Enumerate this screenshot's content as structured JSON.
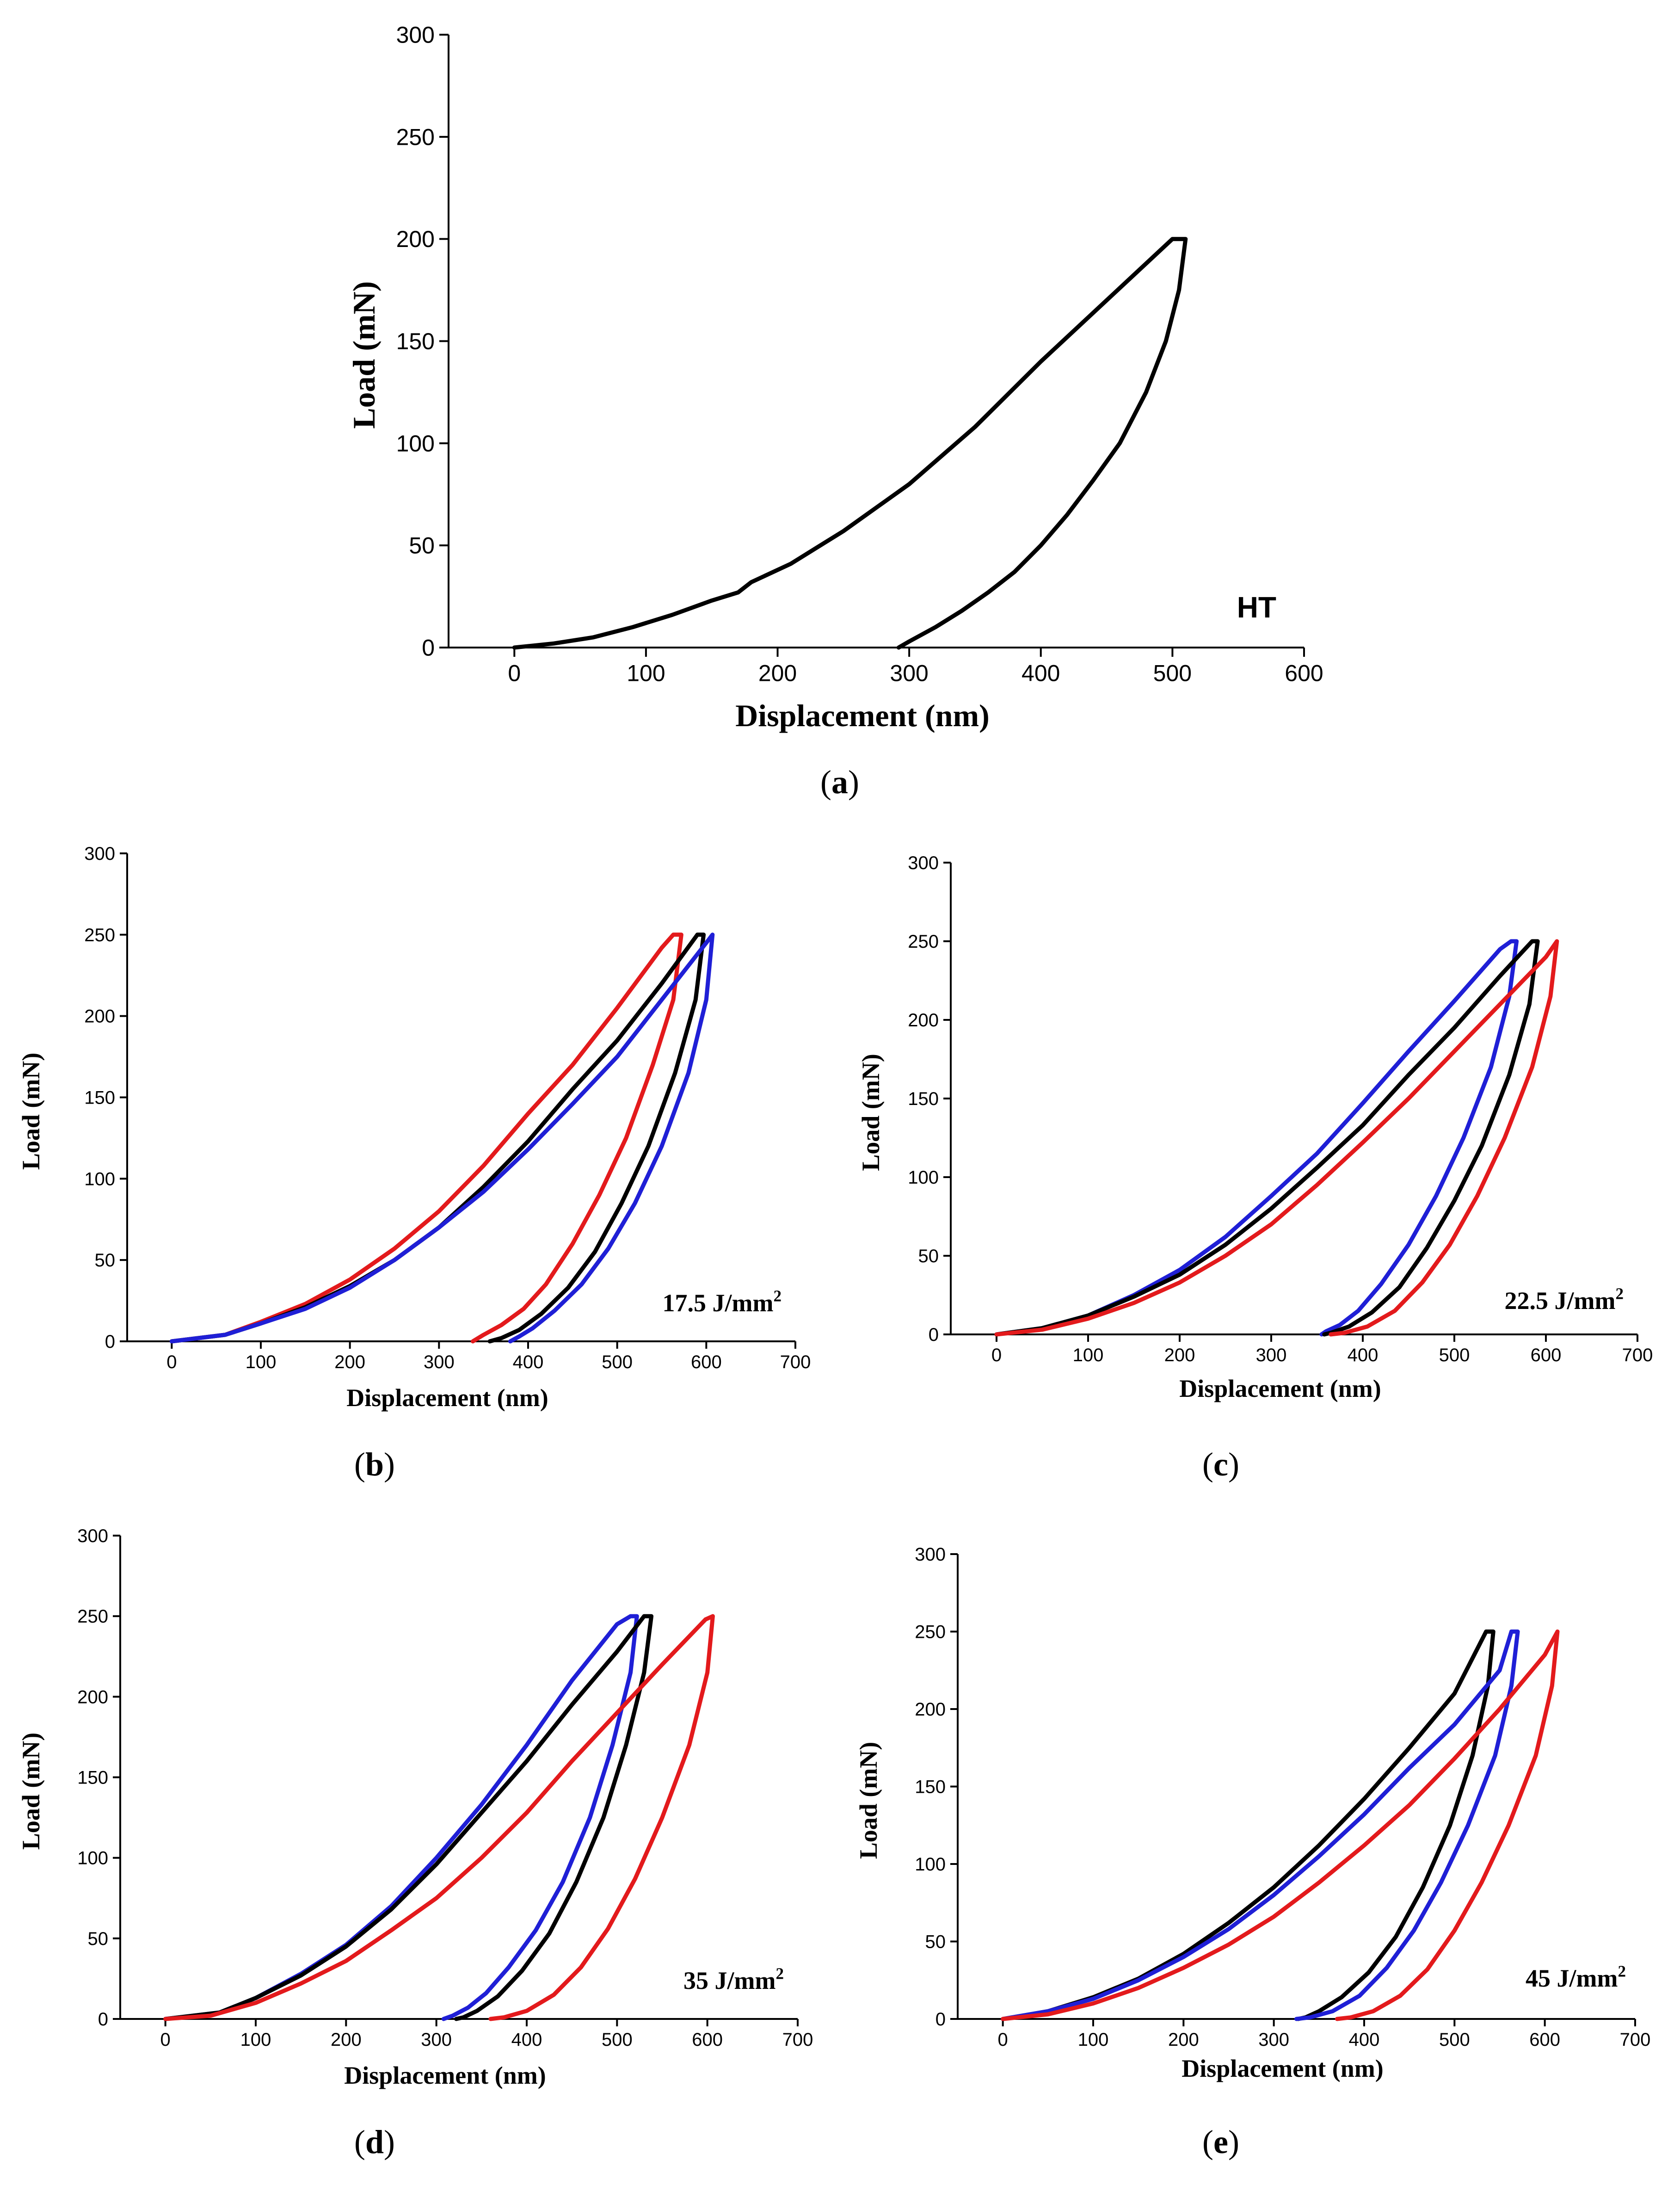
{
  "colors": {
    "black": "#000000",
    "red": "#e31a1c",
    "blue": "#1f1fd6"
  },
  "chart_data": [
    {
      "id": "a",
      "type": "line",
      "caption": "a",
      "xlabel": "Displacement (nm)",
      "ylabel": "Load (mN)",
      "xlim": [
        -50,
        600
      ],
      "ylim": [
        0,
        300
      ],
      "xticks": [
        0,
        100,
        200,
        300,
        400,
        500,
        600
      ],
      "yticks": [
        0,
        50,
        100,
        150,
        200,
        250,
        300
      ],
      "annotation": "HT",
      "series": [
        {
          "name": "HT",
          "color": "#000000",
          "x": [
            0,
            30,
            60,
            90,
            120,
            150,
            170,
            180,
            210,
            250,
            300,
            350,
            400,
            450,
            500,
            510,
            505,
            495,
            480,
            460,
            440,
            420,
            400,
            380,
            360,
            340,
            320,
            300,
            292
          ],
          "y": [
            0,
            2,
            5,
            10,
            16,
            23,
            27,
            32,
            41,
            57,
            80,
            108,
            140,
            170,
            200,
            200,
            175,
            150,
            125,
            100,
            82,
            65,
            50,
            37,
            27,
            18,
            10,
            3,
            0
          ]
        }
      ]
    },
    {
      "id": "b",
      "type": "line",
      "caption": "b",
      "xlabel": "Displacement (nm)",
      "ylabel": "Load (mN)",
      "xlim": [
        -50,
        700
      ],
      "ylim": [
        0,
        300
      ],
      "xticks": [
        0,
        100,
        200,
        300,
        400,
        500,
        600,
        700
      ],
      "yticks": [
        0,
        50,
        100,
        150,
        200,
        250,
        300
      ],
      "annotation": "17.5 J/mm",
      "annotation_sup": "2",
      "series": [
        {
          "name": "red",
          "color": "#e31a1c",
          "x": [
            0,
            60,
            100,
            150,
            200,
            250,
            300,
            350,
            400,
            450,
            500,
            550,
            563,
            572,
            563,
            540,
            510,
            480,
            450,
            420,
            395,
            370,
            350,
            338
          ],
          "y": [
            0,
            4,
            12,
            23,
            38,
            57,
            80,
            108,
            140,
            170,
            205,
            242,
            250,
            250,
            210,
            170,
            125,
            90,
            60,
            35,
            20,
            10,
            4,
            0
          ]
        },
        {
          "name": "black",
          "color": "#000000",
          "x": [
            0,
            60,
            100,
            150,
            200,
            250,
            300,
            350,
            400,
            450,
            500,
            550,
            590,
            597,
            588,
            565,
            535,
            505,
            475,
            445,
            415,
            390,
            370,
            357
          ],
          "y": [
            0,
            4,
            11,
            21,
            34,
            50,
            70,
            95,
            123,
            155,
            185,
            220,
            250,
            250,
            210,
            165,
            120,
            85,
            55,
            33,
            17,
            7,
            2,
            0
          ]
        },
        {
          "name": "blue",
          "color": "#1f1fd6",
          "x": [
            0,
            60,
            100,
            150,
            200,
            250,
            300,
            350,
            400,
            450,
            500,
            550,
            600,
            607,
            600,
            580,
            550,
            520,
            490,
            460,
            430,
            405,
            390,
            380
          ],
          "y": [
            0,
            4,
            11,
            20,
            33,
            50,
            70,
            92,
            118,
            146,
            175,
            210,
            245,
            250,
            210,
            165,
            120,
            85,
            57,
            35,
            19,
            8,
            3,
            0
          ]
        }
      ]
    },
    {
      "id": "c",
      "type": "line",
      "caption": "c",
      "xlabel": "Displacement (nm)",
      "ylabel": "Load (mN)",
      "xlim": [
        -50,
        700
      ],
      "ylim": [
        0,
        300
      ],
      "xticks": [
        0,
        100,
        200,
        300,
        400,
        500,
        600,
        700
      ],
      "yticks": [
        0,
        50,
        100,
        150,
        200,
        250,
        300
      ],
      "annotation": "22.5 J/mm",
      "annotation_sup": "2",
      "series": [
        {
          "name": "blue",
          "color": "#1f1fd6",
          "x": [
            0,
            50,
            100,
            150,
            200,
            250,
            300,
            350,
            400,
            450,
            500,
            550,
            562,
            568,
            560,
            540,
            510,
            480,
            450,
            420,
            395,
            375,
            360,
            355
          ],
          "y": [
            0,
            4,
            12,
            25,
            41,
            62,
            88,
            115,
            147,
            180,
            212,
            245,
            250,
            250,
            215,
            170,
            125,
            88,
            57,
            32,
            15,
            6,
            2,
            0
          ]
        },
        {
          "name": "black",
          "color": "#000000",
          "x": [
            0,
            50,
            100,
            150,
            200,
            250,
            300,
            350,
            400,
            450,
            500,
            550,
            585,
            591,
            582,
            560,
            530,
            500,
            470,
            440,
            410,
            385,
            365,
            358
          ],
          "y": [
            0,
            4,
            12,
            24,
            38,
            57,
            80,
            106,
            133,
            165,
            195,
            228,
            250,
            250,
            210,
            165,
            120,
            85,
            55,
            30,
            14,
            5,
            1,
            0
          ]
        },
        {
          "name": "red",
          "color": "#e31a1c",
          "x": [
            0,
            50,
            100,
            150,
            200,
            250,
            300,
            350,
            400,
            450,
            500,
            550,
            600,
            612,
            605,
            585,
            555,
            525,
            495,
            465,
            435,
            405,
            380,
            365
          ],
          "y": [
            0,
            3,
            10,
            20,
            33,
            50,
            70,
            95,
            122,
            150,
            180,
            210,
            240,
            250,
            215,
            170,
            125,
            88,
            57,
            33,
            15,
            5,
            1,
            0
          ]
        }
      ]
    },
    {
      "id": "d",
      "type": "line",
      "caption": "d",
      "xlabel": "Displacement (nm)",
      "ylabel": "Load (mN)",
      "xlim": [
        -50,
        700
      ],
      "ylim": [
        0,
        300
      ],
      "xticks": [
        0,
        100,
        200,
        300,
        400,
        500,
        600,
        700
      ],
      "yticks": [
        0,
        50,
        100,
        150,
        200,
        250,
        300
      ],
      "annotation": "35 J/mm",
      "annotation_sup": "2",
      "series": [
        {
          "name": "blue",
          "color": "#1f1fd6",
          "x": [
            0,
            60,
            100,
            150,
            200,
            250,
            300,
            350,
            400,
            450,
            500,
            515,
            522,
            515,
            495,
            470,
            440,
            410,
            380,
            355,
            335,
            318,
            308
          ],
          "y": [
            0,
            4,
            13,
            28,
            46,
            70,
            100,
            133,
            170,
            210,
            245,
            250,
            250,
            215,
            170,
            125,
            85,
            55,
            32,
            16,
            7,
            2,
            0
          ]
        },
        {
          "name": "black",
          "color": "#000000",
          "x": [
            0,
            60,
            100,
            150,
            200,
            250,
            300,
            350,
            400,
            450,
            500,
            530,
            538,
            530,
            510,
            485,
            455,
            425,
            395,
            368,
            345,
            330,
            322
          ],
          "y": [
            0,
            4,
            13,
            27,
            45,
            68,
            96,
            128,
            160,
            195,
            228,
            250,
            250,
            215,
            170,
            125,
            85,
            53,
            30,
            14,
            5,
            1,
            0
          ]
        },
        {
          "name": "red",
          "color": "#e31a1c",
          "x": [
            0,
            50,
            100,
            150,
            200,
            250,
            300,
            350,
            400,
            450,
            500,
            550,
            598,
            606,
            600,
            580,
            550,
            520,
            490,
            460,
            430,
            400,
            375,
            360
          ],
          "y": [
            0,
            2,
            10,
            22,
            36,
            55,
            75,
            100,
            128,
            160,
            190,
            220,
            248,
            250,
            215,
            170,
            125,
            87,
            56,
            32,
            15,
            5,
            1,
            0
          ]
        }
      ]
    },
    {
      "id": "e",
      "type": "line",
      "caption": "e",
      "xlabel": "Displacement (nm)",
      "ylabel": "Load (mN)",
      "xlim": [
        -50,
        700
      ],
      "ylim": [
        0,
        300
      ],
      "xticks": [
        0,
        100,
        200,
        300,
        400,
        500,
        600,
        700
      ],
      "yticks": [
        0,
        50,
        100,
        150,
        200,
        250,
        300
      ],
      "annotation": "45 J/mm",
      "annotation_sup": "2",
      "series": [
        {
          "name": "black",
          "color": "#000000",
          "x": [
            0,
            50,
            100,
            150,
            200,
            250,
            300,
            350,
            400,
            450,
            500,
            535,
            543,
            537,
            520,
            495,
            465,
            435,
            405,
            375,
            350,
            335,
            327
          ],
          "y": [
            0,
            5,
            14,
            26,
            42,
            62,
            85,
            112,
            142,
            175,
            210,
            250,
            250,
            215,
            170,
            125,
            85,
            53,
            30,
            14,
            5,
            1,
            0
          ]
        },
        {
          "name": "blue",
          "color": "#1f1fd6",
          "x": [
            0,
            50,
            100,
            150,
            200,
            250,
            300,
            350,
            400,
            450,
            500,
            550,
            563,
            570,
            563,
            545,
            515,
            485,
            455,
            425,
            395,
            365,
            340,
            325
          ],
          "y": [
            0,
            5,
            13,
            25,
            40,
            58,
            80,
            105,
            132,
            162,
            190,
            225,
            250,
            250,
            215,
            170,
            125,
            88,
            57,
            33,
            15,
            5,
            1,
            0
          ]
        },
        {
          "name": "red",
          "color": "#e31a1c",
          "x": [
            0,
            50,
            100,
            150,
            200,
            250,
            300,
            350,
            400,
            450,
            500,
            550,
            600,
            614,
            608,
            590,
            560,
            530,
            500,
            470,
            440,
            410,
            385,
            370
          ],
          "y": [
            0,
            3,
            10,
            20,
            33,
            48,
            66,
            88,
            112,
            138,
            168,
            200,
            235,
            250,
            215,
            170,
            125,
            88,
            57,
            32,
            15,
            5,
            1,
            0
          ]
        }
      ]
    }
  ]
}
